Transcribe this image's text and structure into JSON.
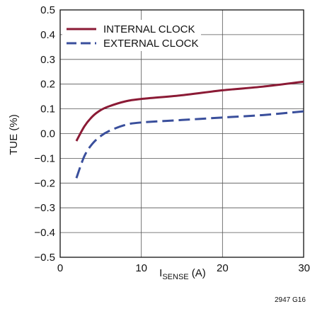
{
  "chart_data": {
    "type": "line",
    "xlabel_main": "I",
    "xlabel_sub": "SENSE",
    "xlabel_unit": " (A)",
    "ylabel": "TUE (%)",
    "xlim": [
      0,
      30
    ],
    "ylim": [
      -0.5,
      0.5
    ],
    "x_ticks": [
      0,
      10,
      20,
      30
    ],
    "x_tick_labels": [
      "0",
      "10",
      "20",
      "30"
    ],
    "y_ticks": [
      0.5,
      0.4,
      0.3,
      0.2,
      0.1,
      0.0,
      -0.1,
      -0.2,
      -0.3,
      -0.4,
      -0.5
    ],
    "y_tick_labels": [
      "0.5",
      "0.4",
      "0.3",
      "0.2",
      "0.1",
      "0.0",
      "−0.1",
      "−0.2",
      "−0.3",
      "−0.4",
      "−0.5"
    ],
    "grid": true,
    "legend_position": "top-left",
    "series": [
      {
        "name": "INTERNAL CLOCK",
        "color": "#8b1a35",
        "style": "solid",
        "x": [
          2,
          3,
          4,
          5,
          6,
          8,
          10,
          15,
          20,
          25,
          30
        ],
        "y": [
          -0.03,
          0.03,
          0.07,
          0.095,
          0.11,
          0.13,
          0.14,
          0.155,
          0.175,
          0.19,
          0.21
        ]
      },
      {
        "name": "EXTERNAL CLOCK",
        "color": "#3a4f9c",
        "style": "dashed",
        "x": [
          2,
          3,
          4,
          5,
          6,
          8,
          10,
          15,
          20,
          25,
          30
        ],
        "y": [
          -0.18,
          -0.09,
          -0.04,
          -0.01,
          0.01,
          0.035,
          0.045,
          0.055,
          0.065,
          0.075,
          0.09
        ]
      }
    ],
    "figure_code": "2947 G16"
  }
}
